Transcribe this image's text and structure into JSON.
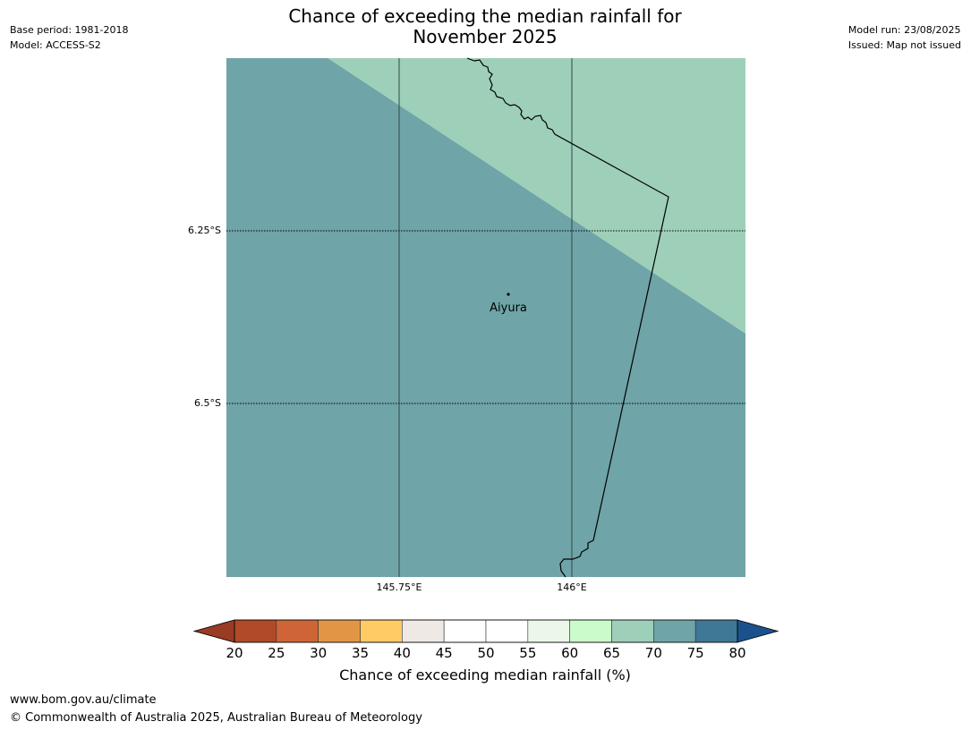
{
  "header": {
    "base_period": "Base period: 1981-2018",
    "model": "Model: ACCESS-S2",
    "model_run": "Model run: 23/08/2025",
    "issued": "Issued: Map not issued",
    "title_line1": "Chance of exceeding the median rainfall for",
    "title_line2": "November 2025"
  },
  "map": {
    "lat_labels": [
      "6.25°S",
      "6.5°S"
    ],
    "lon_labels": [
      "145.75°E",
      "146°E"
    ],
    "place": "Aiyura",
    "colors": {
      "zone_70_75": "#6fa4a8",
      "zone_65_70": "#9ecfb9"
    }
  },
  "colorbar": {
    "title": "Chance of exceeding median rainfall (%)",
    "ticks": [
      "20",
      "25",
      "30",
      "35",
      "40",
      "45",
      "50",
      "55",
      "60",
      "65",
      "70",
      "75",
      "80"
    ],
    "colors": [
      "#b04a28",
      "#cf6536",
      "#e39546",
      "#fecb65",
      "#efe9e5",
      "#ffffff",
      "#ffffff",
      "#eaf7e9",
      "#cbfbcb",
      "#9ecfb9",
      "#6fa4a8",
      "#3f7897"
    ],
    "under_color": "#9a3b24",
    "over_color": "#1b528d"
  },
  "footer": {
    "url": "www.bom.gov.au/climate",
    "copyright": "© Commonwealth of Australia 2025, Australian Bureau of Meteorology"
  }
}
